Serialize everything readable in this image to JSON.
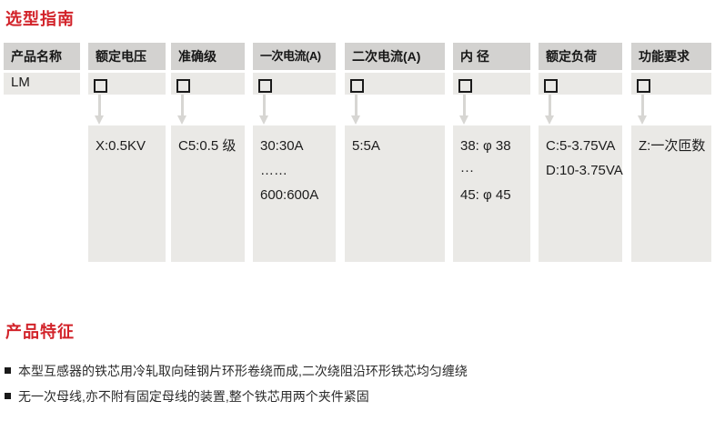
{
  "page": {
    "guide_title": "选型指南",
    "features_title": "产品特征"
  },
  "colors": {
    "accent_red": "#d2232a",
    "header_gray": "#d3d2d0",
    "cell_gray": "#eae9e6",
    "arrow_gray": "#d7d6d3"
  },
  "table": {
    "columns": [
      {
        "header": "产品名称",
        "code": "LM",
        "has_checkbox": false,
        "values": []
      },
      {
        "header": "额定电压",
        "has_checkbox": true,
        "values": [
          "X:0.5KV"
        ]
      },
      {
        "header": "准确级",
        "has_checkbox": true,
        "values": [
          "C5:0.5 级"
        ]
      },
      {
        "header": "一次电流(A)",
        "has_checkbox": true,
        "values": [
          "30:30A",
          "……",
          "600:600A"
        ]
      },
      {
        "header": "二次电流(A)",
        "has_checkbox": true,
        "values": [
          "5:5A"
        ]
      },
      {
        "header": "内 径",
        "has_checkbox": true,
        "values": [
          "38: φ 38",
          "···",
          "45: φ 45"
        ]
      },
      {
        "header": "额定负荷",
        "has_checkbox": true,
        "values": [
          "C:5-3.75VA",
          "D:10-3.75VA"
        ]
      },
      {
        "header": "功能要求",
        "has_checkbox": true,
        "values": [
          "Z:一次匝数"
        ]
      }
    ]
  },
  "features": {
    "items": [
      "本型互感器的铁芯用冷轧取向硅钢片环形卷绕而成,二次绕阻沿环形铁芯均匀缠绕",
      "无一次母线,亦不附有固定母线的装置,整个铁芯用两个夹件紧固"
    ]
  }
}
